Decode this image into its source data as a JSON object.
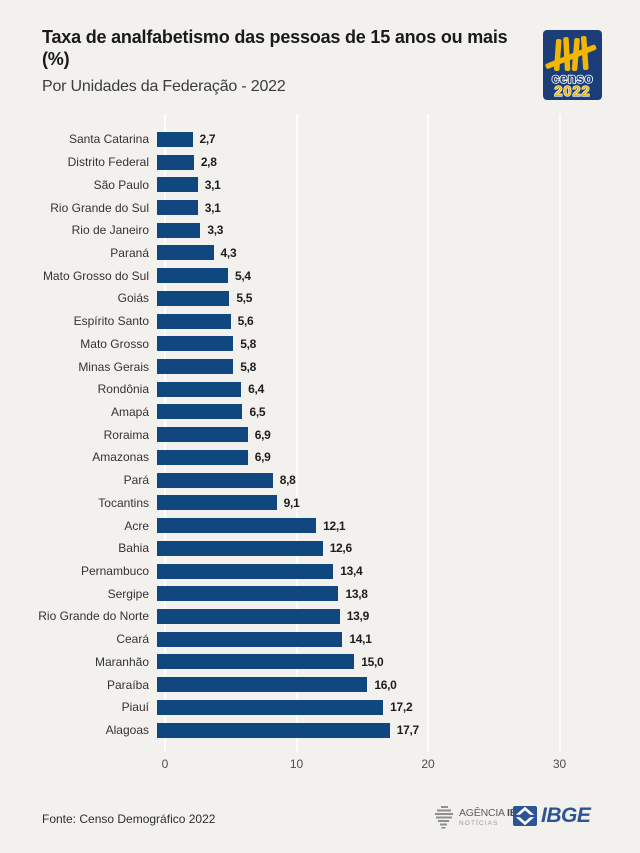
{
  "header": {
    "title": "Taxa de analfabetismo das pessoas de 15 anos ou mais (%)",
    "subtitle": "Por Unidades da Federação - 2022"
  },
  "logos": {
    "censo": {
      "line1": "censo",
      "line2": "2022"
    },
    "agencia": {
      "word1": "AGÊNCIA",
      "word2": "IBGE",
      "line2": "NOTÍCIAS"
    },
    "ibge": {
      "text": "IBGE"
    }
  },
  "footer": {
    "source": "Fonte: Censo Demográfico 2022"
  },
  "colors": {
    "background": "#f2f1ee",
    "bar": "#11477f",
    "censo_navy": "#1c3e78",
    "censo_yellow": "#f2b705",
    "ibge_blue": "#2b5597",
    "gridline": "#fcfcfb"
  },
  "chart_data": {
    "type": "bar",
    "orientation": "horizontal",
    "title": "Taxa de analfabetismo das pessoas de 15 anos ou mais (%)",
    "subtitle": "Por Unidades da Federação - 2022",
    "categories": [
      "Santa Catarina",
      "Distrito Federal",
      "São Paulo",
      "Rio Grande do Sul",
      "Rio de Janeiro",
      "Paraná",
      "Mato Grosso do Sul",
      "Goiás",
      "Espírito Santo",
      "Mato Grosso",
      "Minas Gerais",
      "Rondônia",
      "Amapá",
      "Roraima",
      "Amazonas",
      "Pará",
      "Tocantins",
      "Acre",
      "Bahia",
      "Pernambuco",
      "Sergipe",
      "Rio Grande do Norte",
      "Ceará",
      "Maranhão",
      "Paraíba",
      "Piauí",
      "Alagoas"
    ],
    "values": [
      2.7,
      2.8,
      3.1,
      3.1,
      3.3,
      4.3,
      5.4,
      5.5,
      5.6,
      5.8,
      5.8,
      6.4,
      6.5,
      6.9,
      6.9,
      8.8,
      9.1,
      12.1,
      12.6,
      13.4,
      13.8,
      13.9,
      14.1,
      15.0,
      16.0,
      17.2,
      17.7
    ],
    "value_labels": [
      "2,7",
      "2,8",
      "3,1",
      "3,1",
      "3,3",
      "4,3",
      "5,4",
      "5,5",
      "5,6",
      "5,8",
      "5,8",
      "6,4",
      "6,5",
      "6,9",
      "6,9",
      "8,8",
      "9,1",
      "12,1",
      "12,6",
      "13,4",
      "13,8",
      "13,9",
      "14,1",
      "15,0",
      "16,0",
      "17,2",
      "17,7"
    ],
    "x_ticks": [
      0,
      10,
      20,
      30
    ],
    "xlim": [
      0,
      33
    ],
    "xlabel": "",
    "ylabel": "",
    "grid": "vertical-white-lines",
    "legend": "none"
  }
}
